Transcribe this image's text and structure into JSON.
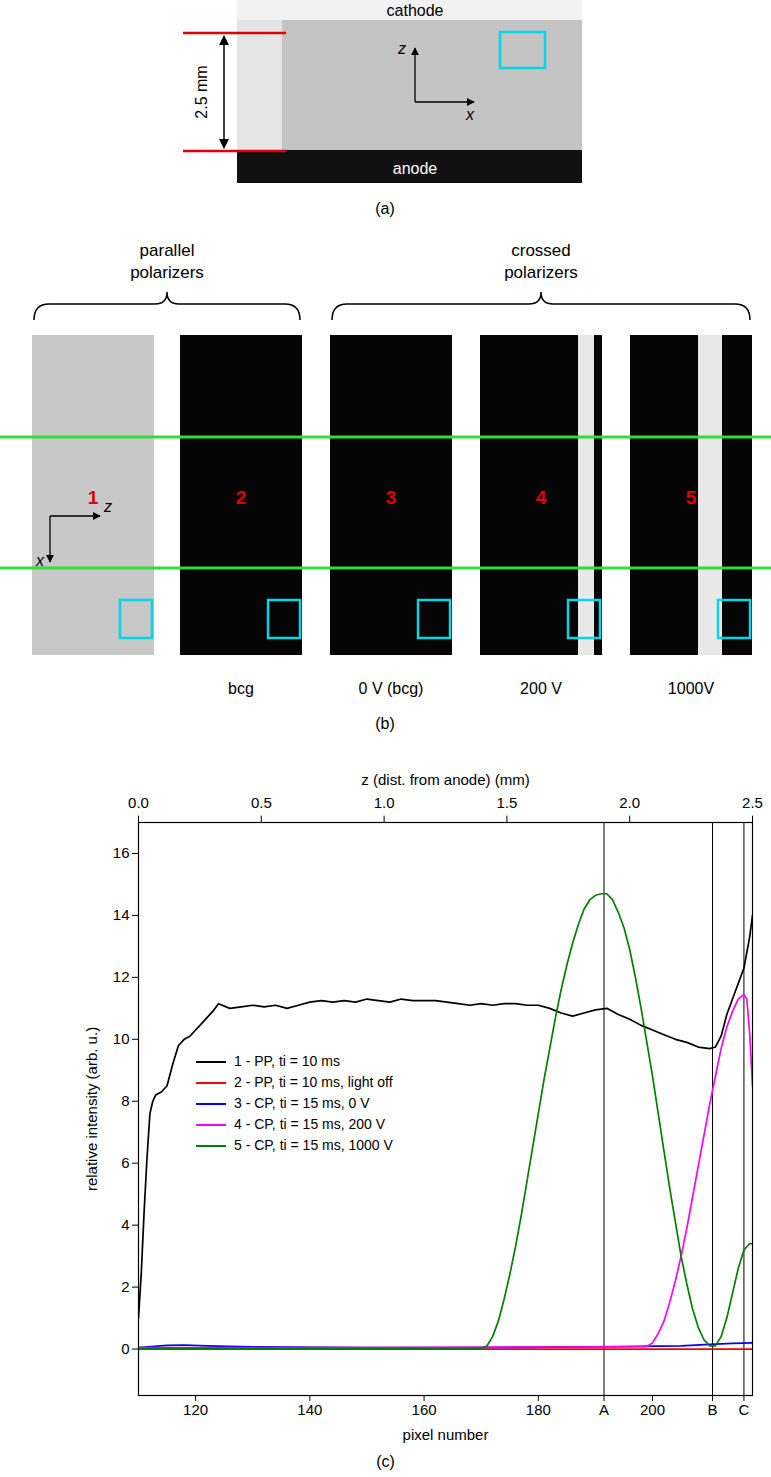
{
  "figure": {
    "panel_a": {
      "label": "(a)",
      "top_electrode": "cathode",
      "bottom_electrode": "anode",
      "gap": "2.5 mm",
      "axis_labels": {
        "vertical": "z",
        "horizontal": "x"
      }
    },
    "panel_b": {
      "label": "(b)",
      "axis_labels": {
        "horizontal": "z",
        "vertical": "x"
      },
      "groups": [
        {
          "title": "parallel polarizers",
          "images": [
            {
              "number": "1"
            },
            {
              "number": "2",
              "caption": "bcg"
            }
          ]
        },
        {
          "title": "crossed polarizers",
          "images": [
            {
              "number": "3",
              "caption": "0 V (bcg)"
            },
            {
              "number": "4",
              "caption": "200 V"
            },
            {
              "number": "5",
              "caption": "1000V"
            }
          ]
        }
      ]
    },
    "panel_c": {
      "label": "(c)"
    }
  },
  "chart_data": {
    "type": "line",
    "xlabel": "pixel number",
    "ylabel": "relative intensity (arb. u.)",
    "x2label": "z (dist. from anode) (mm)",
    "xlim": [
      110,
      217.5
    ],
    "xticks": [
      120,
      140,
      160,
      180,
      200
    ],
    "x2lim": [
      0,
      2.5
    ],
    "x2ticks": [
      {
        "value": 0,
        "label": "0.0"
      },
      0.5,
      {
        "value": 1,
        "label": "1.0"
      },
      1.5,
      {
        "value": 2,
        "label": "2.0"
      },
      2.5
    ],
    "ylim": [
      -1.5,
      17
    ],
    "yticks": [
      0,
      2,
      4,
      6,
      8,
      10,
      12,
      14,
      16
    ],
    "legend": "left",
    "annotations": [
      {
        "type": "vline",
        "x": 191.5,
        "label": "A",
        "line_style": "dotted"
      },
      {
        "type": "vline",
        "x": 210.5,
        "label": "B",
        "line_style": "dotted"
      },
      {
        "type": "vline",
        "x": 216,
        "label": "C",
        "line_style": "dotted"
      }
    ],
    "series": [
      {
        "name": "1 - PP, ti = 10 ms",
        "color": "#000000",
        "x": [
          110,
          110.5,
          111,
          111.5,
          112,
          112.5,
          113,
          114,
          115,
          116,
          117,
          118,
          119,
          120,
          121,
          122,
          123,
          124,
          126,
          128,
          130,
          132,
          134,
          136,
          138,
          140,
          142,
          144,
          146,
          148,
          150,
          152,
          154,
          156,
          158,
          160,
          162,
          164,
          166,
          168,
          170,
          172,
          174,
          176,
          178,
          180,
          182,
          184,
          186,
          188,
          190,
          192,
          194,
          196,
          198,
          200,
          202,
          204,
          206,
          208,
          210,
          211,
          212,
          213,
          214,
          215,
          216,
          217,
          217.5
        ],
        "values": [
          1.0,
          2.5,
          4.5,
          6.2,
          7.6,
          8.0,
          8.2,
          8.3,
          8.5,
          9.2,
          9.8,
          10.0,
          10.1,
          10.3,
          10.5,
          10.7,
          10.9,
          11.15,
          11.0,
          11.05,
          11.1,
          11.05,
          11.1,
          11.0,
          11.1,
          11.2,
          11.25,
          11.2,
          11.25,
          11.2,
          11.3,
          11.25,
          11.2,
          11.3,
          11.25,
          11.25,
          11.25,
          11.2,
          11.15,
          11.1,
          11.15,
          11.1,
          11.15,
          11.15,
          11.1,
          11.1,
          11.0,
          10.85,
          10.75,
          10.85,
          10.95,
          11.0,
          10.8,
          10.65,
          10.45,
          10.3,
          10.15,
          10.0,
          9.9,
          9.75,
          9.7,
          9.75,
          10.1,
          10.8,
          11.3,
          11.8,
          12.3,
          13.3,
          14.0
        ]
      },
      {
        "name": "2 - PP, ti = 10 ms, light off",
        "color": "#ff0000",
        "x": [
          110,
          140,
          170,
          200,
          217.5
        ],
        "values": [
          0,
          0,
          0,
          0,
          0
        ]
      },
      {
        "name": "3 - CP, ti = 15 ms, 0 V",
        "color": "#0000ff",
        "x": [
          110,
          115,
          118,
          122,
          130,
          150,
          170,
          190,
          205,
          210,
          214,
          217.5
        ],
        "values": [
          0.05,
          0.12,
          0.13,
          0.1,
          0.07,
          0.05,
          0.05,
          0.07,
          0.1,
          0.15,
          0.18,
          0.2
        ]
      },
      {
        "name": "4 - CP, ti = 15 ms, 200 V",
        "color": "#ff00ff",
        "x": [
          110,
          150,
          199,
          200,
          201,
          202,
          203,
          204,
          205,
          206,
          207,
          208,
          209,
          210,
          211,
          212,
          213,
          214,
          215,
          216,
          216.5,
          217,
          217.5
        ],
        "values": [
          0.05,
          0.05,
          0.08,
          0.2,
          0.5,
          0.9,
          1.5,
          2.2,
          3.0,
          3.9,
          4.9,
          5.9,
          6.9,
          7.9,
          8.8,
          9.7,
          10.4,
          10.9,
          11.3,
          11.45,
          11.3,
          10.2,
          8.5
        ]
      },
      {
        "name": "5 - CP, ti = 15 ms, 1000 V",
        "color": "#008000",
        "x": [
          110,
          140,
          170,
          171,
          172,
          173,
          174,
          175,
          176,
          177,
          178,
          179,
          180,
          181,
          182,
          183,
          184,
          185,
          186,
          187,
          188,
          189,
          190,
          191,
          192,
          193,
          194,
          195,
          196,
          197,
          198,
          199,
          200,
          201,
          202,
          203,
          204,
          205,
          206,
          207,
          208,
          209,
          210,
          211,
          212,
          213,
          214,
          215,
          216,
          217,
          217.5
        ],
        "values": [
          0.02,
          0.02,
          0.03,
          0.1,
          0.4,
          0.9,
          1.6,
          2.4,
          3.3,
          4.3,
          5.4,
          6.5,
          7.6,
          8.7,
          9.7,
          10.7,
          11.6,
          12.4,
          13.1,
          13.7,
          14.2,
          14.5,
          14.65,
          14.7,
          14.7,
          14.5,
          14.1,
          13.6,
          12.9,
          12.0,
          11.0,
          9.9,
          8.8,
          7.6,
          6.4,
          5.2,
          4.1,
          3.0,
          2.1,
          1.3,
          0.7,
          0.3,
          0.1,
          0.1,
          0.4,
          1.0,
          1.8,
          2.6,
          3.2,
          3.4,
          3.4
        ]
      }
    ]
  }
}
